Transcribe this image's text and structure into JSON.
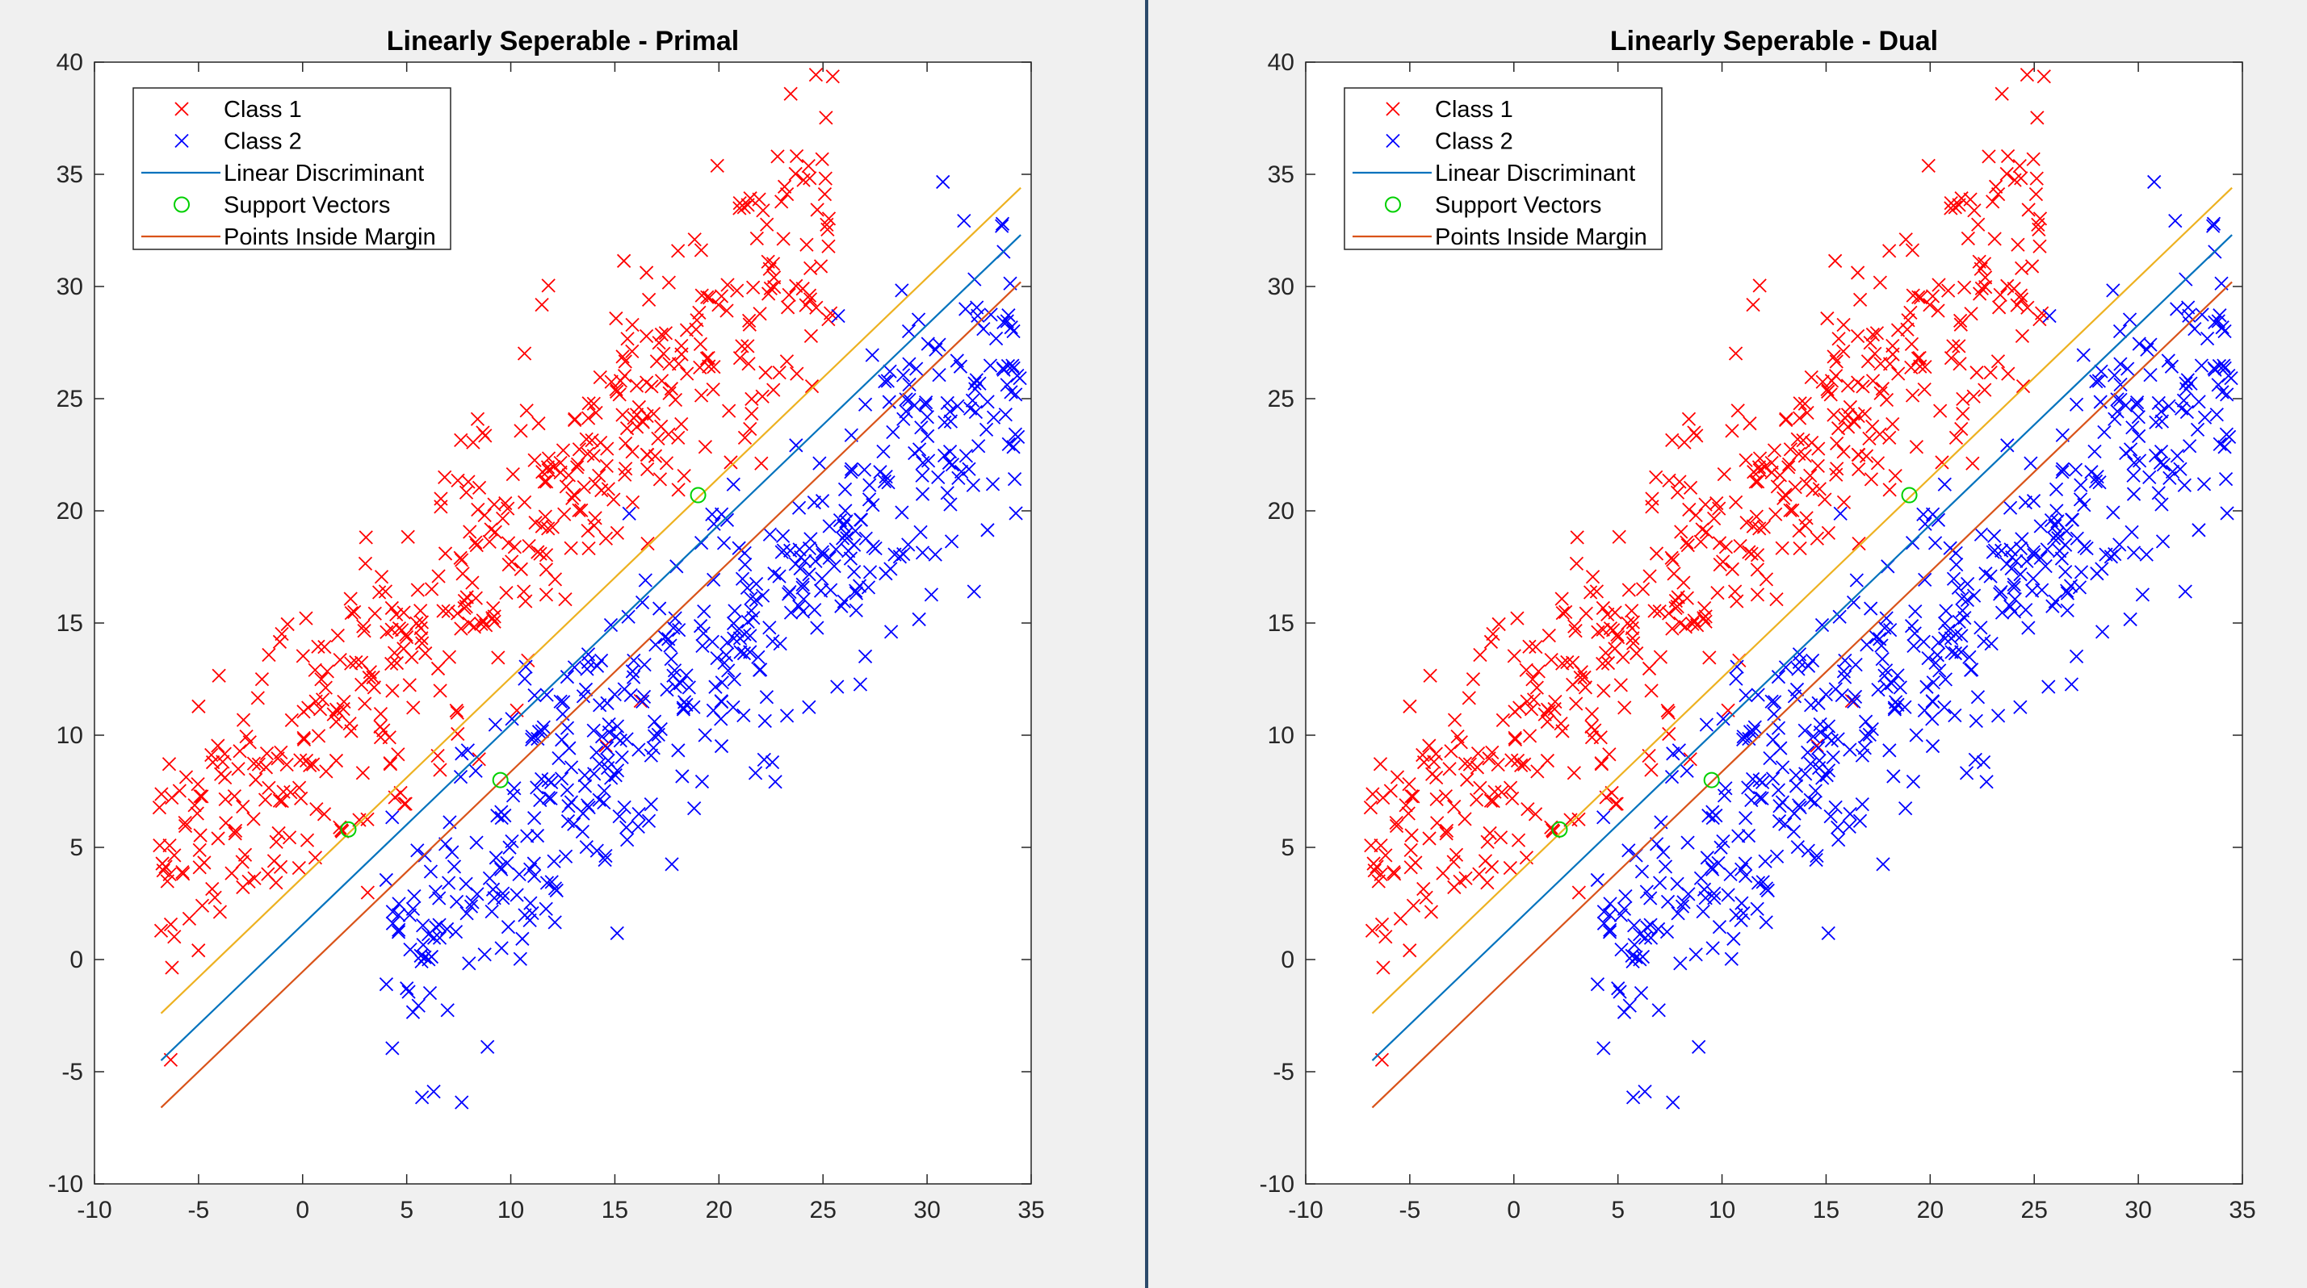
{
  "figure": {
    "colors": {
      "class1": "#ff0000",
      "class2": "#0000ff",
      "discriminant": "#0072bd",
      "margin_upper": "#edb120",
      "margin_lower": "#d95319",
      "support": "#00d000",
      "axes": "#262626",
      "background": "#f0f0f0"
    }
  },
  "chart_data": [
    {
      "type": "scatter",
      "title": "Linearly Seperable - Primal",
      "xlim": [
        -10,
        35
      ],
      "ylim": [
        -10,
        40
      ],
      "xticks": [
        -10,
        -5,
        0,
        5,
        10,
        15,
        20,
        25,
        30,
        35
      ],
      "yticks": [
        -10,
        -5,
        0,
        5,
        10,
        15,
        20,
        25,
        30,
        35,
        40
      ],
      "grid": false,
      "legend_position": "top-left",
      "legend": [
        "Class 1",
        "Class 2",
        "Linear Discriminant",
        "Support Vectors",
        "Points Inside Margin"
      ],
      "lines": [
        {
          "name": "Linear Discriminant",
          "x": [
            -6.8,
            34.5
          ],
          "y": [
            -4.5,
            32.3
          ]
        },
        {
          "name": "Margin (upper)",
          "x": [
            -6.8,
            34.5
          ],
          "y": [
            -2.4,
            34.4
          ]
        },
        {
          "name": "Points Inside Margin",
          "x": [
            -6.8,
            34.5
          ],
          "y": [
            -6.6,
            30.2
          ]
        }
      ],
      "support_vectors": [
        [
          2.2,
          5.8
        ],
        [
          9.5,
          8.0
        ],
        [
          19.0,
          20.7
        ]
      ],
      "class1_points": {
        "count": 500,
        "x_range": [
          -7,
          25.5
        ],
        "slope": 0.89,
        "intercept": 10.0,
        "spread": 3.2
      },
      "class2_points": {
        "count": 500,
        "x_range": [
          4,
          34.5
        ],
        "slope": 0.89,
        "intercept": -4.0,
        "spread": 3.2
      }
    },
    {
      "type": "scatter",
      "title": "Linearly Seperable - Dual",
      "xlim": [
        -10,
        35
      ],
      "ylim": [
        -10,
        40
      ],
      "xticks": [
        -10,
        -5,
        0,
        5,
        10,
        15,
        20,
        25,
        30,
        35
      ],
      "yticks": [
        -10,
        -5,
        0,
        5,
        10,
        15,
        20,
        25,
        30,
        35,
        40
      ],
      "grid": false,
      "legend_position": "top-left",
      "legend": [
        "Class 1",
        "Class 2",
        "Linear Discriminant",
        "Support Vectors",
        "Points Inside Margin"
      ],
      "lines": [
        {
          "name": "Linear Discriminant",
          "x": [
            -6.8,
            34.5
          ],
          "y": [
            -4.5,
            32.3
          ]
        },
        {
          "name": "Margin (upper)",
          "x": [
            -6.8,
            34.5
          ],
          "y": [
            -2.4,
            34.4
          ]
        },
        {
          "name": "Points Inside Margin",
          "x": [
            -6.8,
            34.5
          ],
          "y": [
            -6.6,
            30.2
          ]
        }
      ],
      "support_vectors": [
        [
          2.2,
          5.8
        ],
        [
          9.5,
          8.0
        ],
        [
          19.0,
          20.7
        ]
      ],
      "class1_points": {
        "count": 500,
        "x_range": [
          -7,
          25.5
        ],
        "slope": 0.89,
        "intercept": 10.0,
        "spread": 3.2
      },
      "class2_points": {
        "count": 500,
        "x_range": [
          4,
          34.5
        ],
        "slope": 0.89,
        "intercept": -4.0,
        "spread": 3.2
      }
    }
  ]
}
